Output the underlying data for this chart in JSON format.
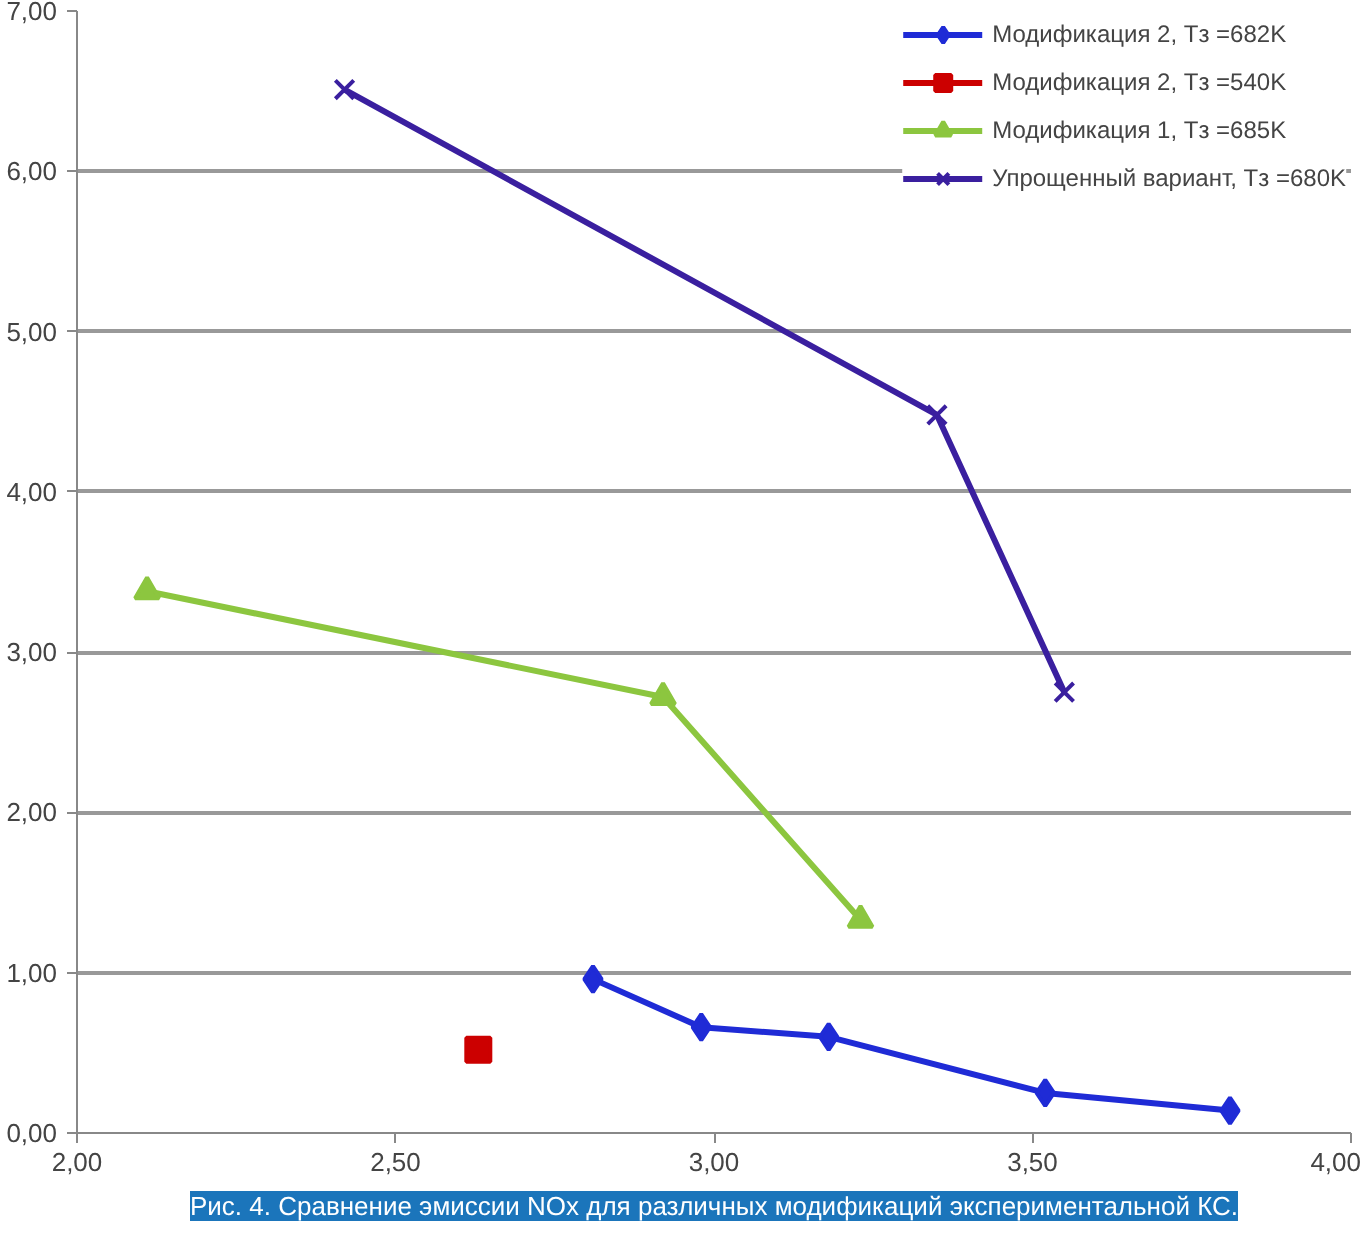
{
  "chart_data": {
    "type": "line",
    "xlim": [
      2.0,
      4.0
    ],
    "xticks": [
      {
        "value": 2.0,
        "label": "2,00"
      },
      {
        "value": 2.5,
        "label": "2,50"
      },
      {
        "value": 3.0,
        "label": "3,00"
      },
      {
        "value": 3.5,
        "label": "3,50"
      },
      {
        "value": 4.0,
        "label": "4,00"
      }
    ],
    "ylim": [
      0.0,
      7.0
    ],
    "yticks": [
      {
        "value": 0,
        "label": "0,00"
      },
      {
        "value": 1,
        "label": "1,00"
      },
      {
        "value": 2,
        "label": "2,00"
      },
      {
        "value": 3,
        "label": "3,00"
      },
      {
        "value": 4,
        "label": "4,00"
      },
      {
        "value": 5,
        "label": "5,00"
      },
      {
        "value": 6,
        "label": "6,00"
      },
      {
        "value": 7,
        "label": "7,00"
      }
    ],
    "grid": "y",
    "legend": "top right",
    "series": [
      {
        "name": "Модификация 2, Tз =682K",
        "color": "#1f2bd6",
        "marker": "diamond",
        "x": [
          2.81,
          2.98,
          3.18,
          3.52,
          3.81
        ],
        "values": [
          0.96,
          0.66,
          0.6,
          0.25,
          0.14
        ]
      },
      {
        "name": "Модификация 2, Tз =540K",
        "color": "#cc0000",
        "marker": "square",
        "x": [
          2.63
        ],
        "values": [
          0.52
        ]
      },
      {
        "name": "Модификация 1, Tз =685K",
        "color": "#8cc63f",
        "marker": "triangle",
        "x": [
          2.11,
          2.92,
          3.23
        ],
        "values": [
          3.38,
          2.72,
          1.33
        ]
      },
      {
        "name": "Упрощенный вариант, Tз =680K",
        "color": "#3a1f9f",
        "marker": "cross",
        "x": [
          2.42,
          3.35,
          3.55
        ],
        "values": [
          6.51,
          4.48,
          2.75
        ]
      }
    ],
    "annotations": [
      "Рис. 4. Сравнение эмиссии NOx для различных модификаций экспериментальной КС."
    ]
  }
}
